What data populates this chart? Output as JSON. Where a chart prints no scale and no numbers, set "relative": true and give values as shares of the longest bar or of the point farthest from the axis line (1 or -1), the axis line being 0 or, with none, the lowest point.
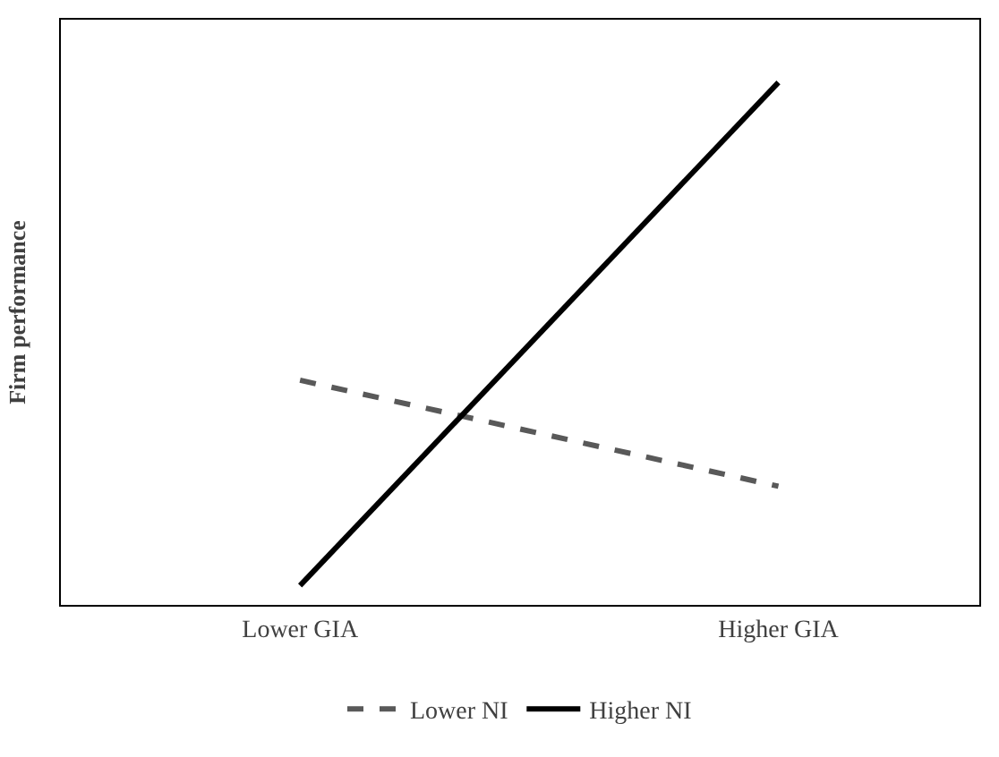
{
  "chart_data": {
    "type": "line",
    "relative": true,
    "ylabel": "Firm performance",
    "categories": [
      "Lower GIA",
      "Higher GIA"
    ],
    "legend": "bottom",
    "marker": "none",
    "series": [
      {
        "name": "Lower NI",
        "color": "#595959",
        "line_style": "dashed",
        "values": [
          0.43,
          0.227
        ]
      },
      {
        "name": "Higher NI",
        "color": "#000000",
        "line_style": "solid",
        "values": [
          0.037,
          1.0
        ]
      }
    ]
  }
}
